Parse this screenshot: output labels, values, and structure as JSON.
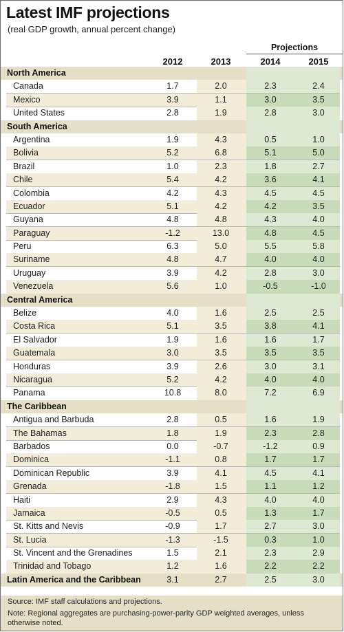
{
  "title": "Latest IMF projections",
  "subtitle": "(real GDP growth, annual percent change)",
  "projections_label": "Projections",
  "columns": [
    "2012",
    "2013",
    "2014",
    "2015"
  ],
  "footer": {
    "source": "Source: IMF staff calculations and projections.",
    "note": "Note: Regional aggregates are purchasing-power-parity GDP weighted averages, unless otherwise noted."
  },
  "chart_data": {
    "type": "table",
    "title": "Latest IMF projections",
    "subtitle": "(real GDP growth, annual percent change)",
    "columns": [
      "2012",
      "2013",
      "2014",
      "2015"
    ],
    "projected_columns": [
      "2014",
      "2015"
    ],
    "sections": [
      {
        "name": "North America",
        "rows": [
          {
            "name": "Canada",
            "values": [
              "1.7",
              "2.0",
              "2.3",
              "2.4"
            ]
          },
          {
            "name": "Mexico",
            "values": [
              "3.9",
              "1.1",
              "3.0",
              "3.5"
            ]
          },
          {
            "name": "United States",
            "values": [
              "2.8",
              "1.9",
              "2.8",
              "3.0"
            ]
          }
        ]
      },
      {
        "name": "South America",
        "rows": [
          {
            "name": "Argentina",
            "values": [
              "1.9",
              "4.3",
              "0.5",
              "1.0"
            ]
          },
          {
            "name": "Bolivia",
            "values": [
              "5.2",
              "6.8",
              "5.1",
              "5.0"
            ]
          },
          {
            "name": "Brazil",
            "values": [
              "1.0",
              "2.3",
              "1.8",
              "2.7"
            ]
          },
          {
            "name": "Chile",
            "values": [
              "5.4",
              "4.2",
              "3.6",
              "4.1"
            ]
          },
          {
            "name": "Colombia",
            "values": [
              "4.2",
              "4.3",
              "4.5",
              "4.5"
            ]
          },
          {
            "name": "Ecuador",
            "values": [
              "5.1",
              "4.2",
              "4.2",
              "3.5"
            ]
          },
          {
            "name": "Guyana",
            "values": [
              "4.8",
              "4.8",
              "4.3",
              "4.0"
            ]
          },
          {
            "name": "Paraguay",
            "values": [
              "-1.2",
              "13.0",
              "4.8",
              "4.5"
            ]
          },
          {
            "name": "Peru",
            "values": [
              "6.3",
              "5.0",
              "5.5",
              "5.8"
            ]
          },
          {
            "name": "Suriname",
            "values": [
              "4.8",
              "4.7",
              "4.0",
              "4.0"
            ]
          },
          {
            "name": "Uruguay",
            "values": [
              "3.9",
              "4.2",
              "2.8",
              "3.0"
            ]
          },
          {
            "name": "Venezuela",
            "values": [
              "5.6",
              "1.0",
              "-0.5",
              "-1.0"
            ]
          }
        ]
      },
      {
        "name": "Central America",
        "rows": [
          {
            "name": "Belize",
            "values": [
              "4.0",
              "1.6",
              "2.5",
              "2.5"
            ]
          },
          {
            "name": "Costa Rica",
            "values": [
              "5.1",
              "3.5",
              "3.8",
              "4.1"
            ]
          },
          {
            "name": "El Salvador",
            "values": [
              "1.9",
              "1.6",
              "1.6",
              "1.7"
            ]
          },
          {
            "name": "Guatemala",
            "values": [
              "3.0",
              "3.5",
              "3.5",
              "3.5"
            ]
          },
          {
            "name": "Honduras",
            "values": [
              "3.9",
              "2.6",
              "3.0",
              "3.1"
            ]
          },
          {
            "name": "Nicaragua",
            "values": [
              "5.2",
              "4.2",
              "4.0",
              "4.0"
            ]
          },
          {
            "name": "Panama",
            "values": [
              "10.8",
              "8.0",
              "7.2",
              "6.9"
            ]
          }
        ]
      },
      {
        "name": "The Caribbean",
        "rows": [
          {
            "name": "Antigua and Barbuda",
            "values": [
              "2.8",
              "0.5",
              "1.6",
              "1.9"
            ]
          },
          {
            "name": "The Bahamas",
            "values": [
              "1.8",
              "1.9",
              "2.3",
              "2.8"
            ]
          },
          {
            "name": "Barbados",
            "values": [
              "0.0",
              "-0.7",
              "-1.2",
              "0.9"
            ]
          },
          {
            "name": "Dominica",
            "values": [
              "-1.1",
              "0.8",
              "1.7",
              "1.7"
            ]
          },
          {
            "name": "Dominican Republic",
            "values": [
              "3.9",
              "4.1",
              "4.5",
              "4.1"
            ]
          },
          {
            "name": "Grenada",
            "values": [
              "-1.8",
              "1.5",
              "1.1",
              "1.2"
            ]
          },
          {
            "name": "Haiti",
            "values": [
              "2.9",
              "4.3",
              "4.0",
              "4.0"
            ]
          },
          {
            "name": "Jamaica",
            "values": [
              "-0.5",
              "0.5",
              "1.3",
              "1.7"
            ]
          },
          {
            "name": "St. Kitts and Nevis",
            "values": [
              "-0.9",
              "1.7",
              "2.7",
              "3.0"
            ]
          },
          {
            "name": "St. Lucia",
            "values": [
              "-1.3",
              "-1.5",
              "0.3",
              "1.0"
            ]
          },
          {
            "name": "St. Vincent and the Grenadines",
            "values": [
              "1.5",
              "2.1",
              "2.3",
              "2.9"
            ]
          },
          {
            "name": "Trinidad and Tobago",
            "values": [
              "1.2",
              "1.6",
              "2.2",
              "2.2"
            ]
          }
        ]
      }
    ],
    "total": {
      "name": "Latin America and the Caribbean",
      "values": [
        "3.1",
        "2.7",
        "2.5",
        "3.0"
      ]
    }
  }
}
